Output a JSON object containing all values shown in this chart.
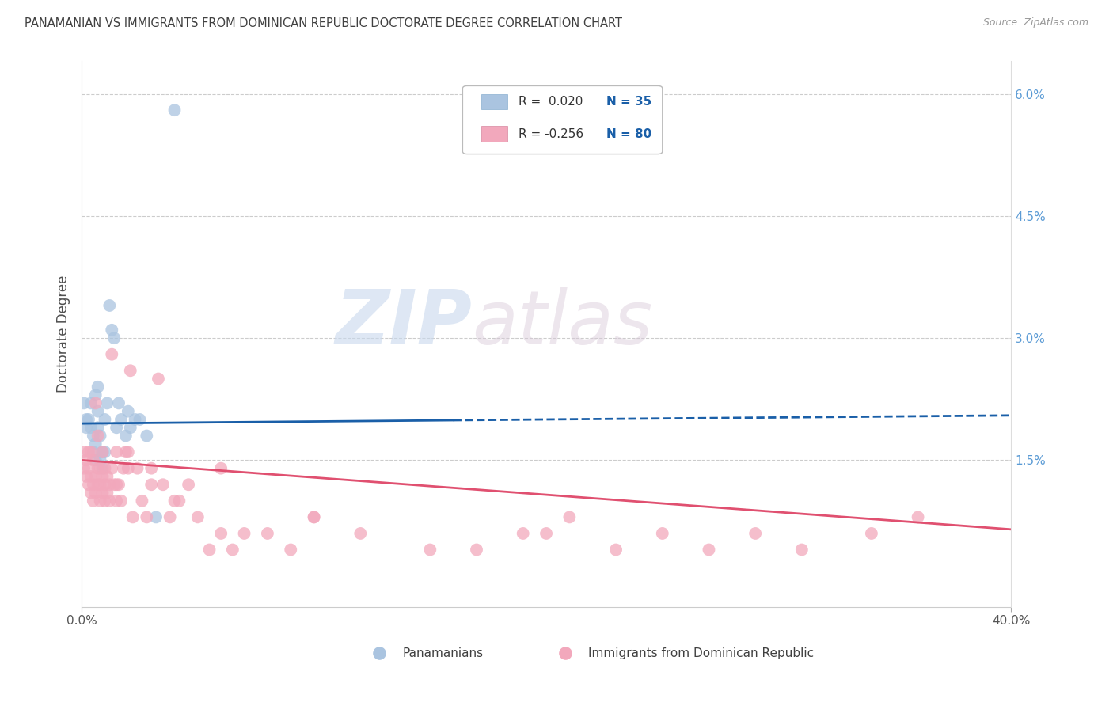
{
  "title": "PANAMANIAN VS IMMIGRANTS FROM DOMINICAN REPUBLIC DOCTORATE DEGREE CORRELATION CHART",
  "source": "Source: ZipAtlas.com",
  "ylabel": "Doctorate Degree",
  "right_yticks": [
    0.0,
    0.015,
    0.03,
    0.045,
    0.06
  ],
  "right_yticklabels": [
    "",
    "1.5%",
    "3.0%",
    "4.5%",
    "6.0%"
  ],
  "xmin": 0.0,
  "xmax": 0.4,
  "ymin": -0.003,
  "ymax": 0.064,
  "watermark_zip": "ZIP",
  "watermark_atlas": "atlas",
  "legend_r1": "R =  0.020",
  "legend_n1": "N = 35",
  "legend_r2": "R = -0.256",
  "legend_n2": "N = 80",
  "blue_color": "#aac4e0",
  "pink_color": "#f2a8bc",
  "blue_line_color": "#1a5fa8",
  "pink_line_color": "#e05070",
  "title_color": "#404040",
  "source_color": "#999999",
  "right_axis_color": "#5b9bd5",
  "legend_text_color": "#333333",
  "legend_n_color": "#1a5fa8",
  "blue_scatter_x": [
    0.001,
    0.002,
    0.002,
    0.003,
    0.004,
    0.004,
    0.005,
    0.005,
    0.006,
    0.006,
    0.006,
    0.007,
    0.007,
    0.007,
    0.008,
    0.008,
    0.009,
    0.009,
    0.01,
    0.01,
    0.011,
    0.012,
    0.013,
    0.014,
    0.015,
    0.016,
    0.017,
    0.019,
    0.02,
    0.021,
    0.023,
    0.025,
    0.028,
    0.032,
    0.04
  ],
  "blue_scatter_y": [
    0.022,
    0.019,
    0.02,
    0.02,
    0.019,
    0.022,
    0.016,
    0.018,
    0.015,
    0.017,
    0.023,
    0.019,
    0.021,
    0.024,
    0.015,
    0.018,
    0.014,
    0.016,
    0.016,
    0.02,
    0.022,
    0.034,
    0.031,
    0.03,
    0.019,
    0.022,
    0.02,
    0.018,
    0.021,
    0.019,
    0.02,
    0.02,
    0.018,
    0.008,
    0.058
  ],
  "pink_scatter_x": [
    0.001,
    0.001,
    0.002,
    0.002,
    0.003,
    0.003,
    0.003,
    0.004,
    0.004,
    0.005,
    0.005,
    0.005,
    0.006,
    0.006,
    0.006,
    0.007,
    0.007,
    0.008,
    0.008,
    0.008,
    0.009,
    0.009,
    0.009,
    0.01,
    0.01,
    0.011,
    0.011,
    0.012,
    0.012,
    0.013,
    0.013,
    0.014,
    0.015,
    0.015,
    0.016,
    0.017,
    0.018,
    0.019,
    0.02,
    0.021,
    0.022,
    0.024,
    0.026,
    0.028,
    0.03,
    0.033,
    0.035,
    0.038,
    0.042,
    0.046,
    0.05,
    0.055,
    0.06,
    0.065,
    0.07,
    0.08,
    0.09,
    0.1,
    0.12,
    0.15,
    0.17,
    0.19,
    0.21,
    0.23,
    0.25,
    0.27,
    0.29,
    0.31,
    0.34,
    0.36,
    0.004,
    0.007,
    0.01,
    0.015,
    0.02,
    0.03,
    0.04,
    0.06,
    0.1,
    0.2
  ],
  "pink_scatter_y": [
    0.014,
    0.016,
    0.013,
    0.015,
    0.012,
    0.014,
    0.016,
    0.011,
    0.013,
    0.012,
    0.015,
    0.01,
    0.013,
    0.011,
    0.022,
    0.012,
    0.014,
    0.01,
    0.012,
    0.014,
    0.011,
    0.013,
    0.016,
    0.01,
    0.012,
    0.011,
    0.013,
    0.01,
    0.012,
    0.028,
    0.014,
    0.012,
    0.01,
    0.016,
    0.012,
    0.01,
    0.014,
    0.016,
    0.014,
    0.026,
    0.008,
    0.014,
    0.01,
    0.008,
    0.014,
    0.025,
    0.012,
    0.008,
    0.01,
    0.012,
    0.008,
    0.004,
    0.006,
    0.004,
    0.006,
    0.006,
    0.004,
    0.008,
    0.006,
    0.004,
    0.004,
    0.006,
    0.008,
    0.004,
    0.006,
    0.004,
    0.006,
    0.004,
    0.006,
    0.008,
    0.016,
    0.018,
    0.014,
    0.012,
    0.016,
    0.012,
    0.01,
    0.014,
    0.008,
    0.006
  ],
  "blue_trend_x0": 0.0,
  "blue_trend_x1": 0.4,
  "blue_trend_y0": 0.0195,
  "blue_trend_y1": 0.0205,
  "pink_trend_x0": 0.0,
  "pink_trend_x1": 0.4,
  "pink_trend_y0": 0.015,
  "pink_trend_y1": 0.0065
}
